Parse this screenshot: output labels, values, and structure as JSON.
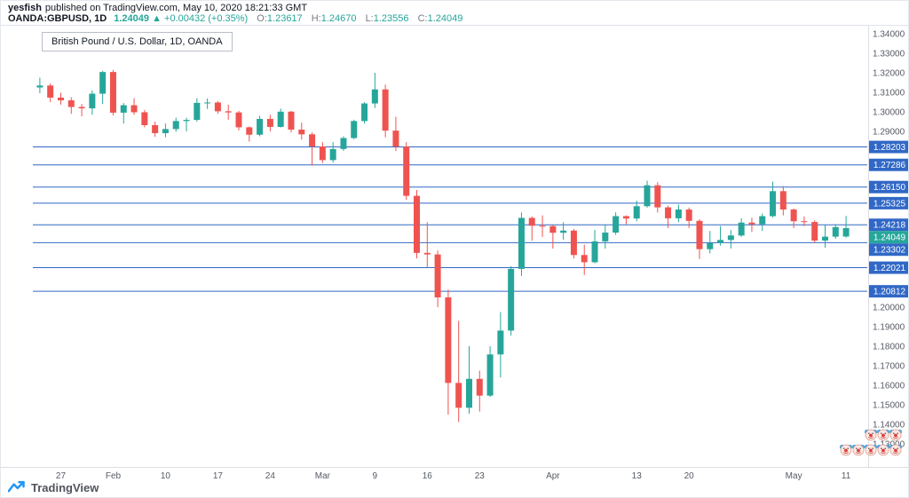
{
  "header": {
    "author": "yesfish",
    "published_text": "published on TradingView.com, May 10, 2020 18:21:33 GMT",
    "symbol": "OANDA:GBPUSD, 1D",
    "price": {
      "last": "1.24049",
      "arrow": "▲",
      "change_abs": "+0.00432",
      "change_pct": "(+0.35%)"
    },
    "ohlc": {
      "o": {
        "label": "O:",
        "value": "1.23617"
      },
      "h": {
        "label": "H:",
        "value": "1.24670"
      },
      "l": {
        "label": "L:",
        "value": "1.23556"
      },
      "c": {
        "label": "C:",
        "value": "1.24049"
      }
    }
  },
  "legend": {
    "text": "British Pound / U.S. Dollar, 1D, OANDA"
  },
  "footer": {
    "brand": "TradingView"
  },
  "colors": {
    "up": "#26a69a",
    "down": "#ef5350",
    "level": "#3168c6",
    "last_label_bg": "#26a69a",
    "axis_text": "#555a63",
    "axis_line": "#dcdee3",
    "label_text": "#ffffff"
  },
  "price_levels": [
    1.28203,
    1.27286,
    1.2615,
    1.25325,
    1.24218,
    1.23302,
    1.22021,
    1.20812
  ],
  "last_price": 1.24049,
  "stickers": {
    "icon": "clown-face-emoji",
    "row_counts": [
      3,
      5
    ]
  },
  "chart_data": {
    "type": "candlestick",
    "title": "British Pound / U.S. Dollar, 1D, OANDA",
    "symbol": "OANDA:GBPUSD",
    "interval": "1D",
    "ylim": [
      1.118,
      1.3441
    ],
    "y_tick_step": 0.01,
    "legend_position": "top-left",
    "grid": false,
    "x_axis_labels": [
      {
        "i": 2,
        "label": "27"
      },
      {
        "i": 7,
        "label": "Feb"
      },
      {
        "i": 12,
        "label": "10"
      },
      {
        "i": 17,
        "label": "17"
      },
      {
        "i": 22,
        "label": "24"
      },
      {
        "i": 27,
        "label": "Mar"
      },
      {
        "i": 32,
        "label": "9"
      },
      {
        "i": 37,
        "label": "16"
      },
      {
        "i": 42,
        "label": "23"
      },
      {
        "i": 49,
        "label": "Apr"
      },
      {
        "i": 57,
        "label": "13"
      },
      {
        "i": 62,
        "label": "20"
      },
      {
        "i": 72,
        "label": "May"
      },
      {
        "i": 77,
        "label": "11"
      }
    ],
    "columns": [
      "date",
      "open",
      "high",
      "low",
      "close"
    ],
    "candles": [
      [
        "2020-01-23",
        1.3125,
        1.3175,
        1.3095,
        1.3135
      ],
      [
        "2020-01-24",
        1.3135,
        1.3145,
        1.305,
        1.3073
      ],
      [
        "2020-01-27",
        1.3073,
        1.3098,
        1.3037,
        1.3059
      ],
      [
        "2020-01-28",
        1.3059,
        1.3075,
        1.299,
        1.3025
      ],
      [
        "2020-01-29",
        1.3025,
        1.304,
        1.2977,
        1.3018
      ],
      [
        "2020-01-30",
        1.3018,
        1.311,
        1.2985,
        1.3093
      ],
      [
        "2020-01-31",
        1.3093,
        1.321,
        1.304,
        1.3204
      ],
      [
        "2020-02-03",
        1.3204,
        1.3215,
        1.2982,
        1.2996
      ],
      [
        "2020-02-04",
        1.2996,
        1.3045,
        1.294,
        1.3034
      ],
      [
        "2020-02-05",
        1.3034,
        1.307,
        1.2985,
        1.2998
      ],
      [
        "2020-02-06",
        1.2998,
        1.301,
        1.2921,
        1.2932
      ],
      [
        "2020-02-07",
        1.2932,
        1.295,
        1.2872,
        1.2891
      ],
      [
        "2020-02-10",
        1.2891,
        1.294,
        1.287,
        1.2912
      ],
      [
        "2020-02-11",
        1.2912,
        1.297,
        1.2898,
        1.2953
      ],
      [
        "2020-02-12",
        1.2953,
        1.297,
        1.29,
        1.2959
      ],
      [
        "2020-02-13",
        1.2959,
        1.307,
        1.295,
        1.3046
      ],
      [
        "2020-02-14",
        1.3046,
        1.3069,
        1.3015,
        1.3048
      ],
      [
        "2020-02-17",
        1.3048,
        1.3055,
        1.299,
        1.3003
      ],
      [
        "2020-02-18",
        1.3003,
        1.3037,
        1.296,
        1.2997
      ],
      [
        "2020-02-19",
        1.2997,
        1.3005,
        1.2905,
        1.2921
      ],
      [
        "2020-02-20",
        1.2921,
        1.2925,
        1.2848,
        1.2883
      ],
      [
        "2020-02-21",
        1.2883,
        1.298,
        1.2875,
        1.2964
      ],
      [
        "2020-02-24",
        1.2964,
        1.2985,
        1.29,
        1.2923
      ],
      [
        "2020-02-25",
        1.2923,
        1.3017,
        1.292,
        1.3001
      ],
      [
        "2020-02-26",
        1.3001,
        1.3005,
        1.2895,
        1.2909
      ],
      [
        "2020-02-27",
        1.2909,
        1.2945,
        1.2858,
        1.2885
      ],
      [
        "2020-02-28",
        1.2885,
        1.2895,
        1.2725,
        1.2823
      ],
      [
        "2020-03-02",
        1.2823,
        1.2845,
        1.2738,
        1.2753
      ],
      [
        "2020-03-03",
        1.2753,
        1.2845,
        1.274,
        1.281
      ],
      [
        "2020-03-04",
        1.281,
        1.2875,
        1.28,
        1.2866
      ],
      [
        "2020-03-05",
        1.2866,
        1.296,
        1.286,
        1.2953
      ],
      [
        "2020-03-06",
        1.2953,
        1.305,
        1.294,
        1.3043
      ],
      [
        "2020-03-09",
        1.3043,
        1.32,
        1.302,
        1.3115
      ],
      [
        "2020-03-10",
        1.3115,
        1.314,
        1.287,
        1.2904
      ],
      [
        "2020-03-11",
        1.2904,
        1.2975,
        1.28,
        1.2822
      ],
      [
        "2020-03-12",
        1.2822,
        1.2845,
        1.255,
        1.257
      ],
      [
        "2020-03-13",
        1.257,
        1.26,
        1.225,
        1.2278
      ],
      [
        "2020-03-16",
        1.2278,
        1.2435,
        1.2205,
        1.227
      ],
      [
        "2020-03-17",
        1.227,
        1.229,
        1.2,
        1.205
      ],
      [
        "2020-03-18",
        1.205,
        1.209,
        1.145,
        1.1612
      ],
      [
        "2020-03-19",
        1.1612,
        1.193,
        1.1412,
        1.1485
      ],
      [
        "2020-03-20",
        1.1485,
        1.18,
        1.1455,
        1.1633
      ],
      [
        "2020-03-23",
        1.1633,
        1.1675,
        1.1465,
        1.1547
      ],
      [
        "2020-03-24",
        1.1547,
        1.18,
        1.154,
        1.1758
      ],
      [
        "2020-03-25",
        1.1758,
        1.1975,
        1.164,
        1.188
      ],
      [
        "2020-03-26",
        1.188,
        1.221,
        1.1855,
        1.2196
      ],
      [
        "2020-03-27",
        1.2196,
        1.2485,
        1.216,
        1.2457
      ],
      [
        "2020-03-30",
        1.2457,
        1.2465,
        1.234,
        1.2417
      ],
      [
        "2020-03-31",
        1.2417,
        1.247,
        1.236,
        1.2415
      ],
      [
        "2020-04-01",
        1.2415,
        1.242,
        1.23,
        1.2381
      ],
      [
        "2020-04-02",
        1.2381,
        1.2435,
        1.2345,
        1.2392
      ],
      [
        "2020-04-03",
        1.2392,
        1.24,
        1.225,
        1.2267
      ],
      [
        "2020-04-06",
        1.2267,
        1.232,
        1.2165,
        1.223
      ],
      [
        "2020-04-07",
        1.223,
        1.2395,
        1.2225,
        1.2337
      ],
      [
        "2020-04-08",
        1.2337,
        1.242,
        1.23,
        1.2382
      ],
      [
        "2020-04-09",
        1.2382,
        1.2485,
        1.237,
        1.2466
      ],
      [
        "2020-04-10",
        1.2466,
        1.247,
        1.2425,
        1.2454
      ],
      [
        "2020-04-13",
        1.2454,
        1.2545,
        1.244,
        1.2517
      ],
      [
        "2020-04-14",
        1.2517,
        1.2648,
        1.251,
        1.2624
      ],
      [
        "2020-04-15",
        1.2624,
        1.264,
        1.2485,
        1.2511
      ],
      [
        "2020-04-16",
        1.2511,
        1.252,
        1.2405,
        1.2455
      ],
      [
        "2020-04-17",
        1.2455,
        1.2525,
        1.2435,
        1.25
      ],
      [
        "2020-04-20",
        1.25,
        1.251,
        1.2405,
        1.2442
      ],
      [
        "2020-04-21",
        1.2442,
        1.245,
        1.2247,
        1.2297
      ],
      [
        "2020-04-22",
        1.2297,
        1.239,
        1.2275,
        1.2329
      ],
      [
        "2020-04-23",
        1.2329,
        1.2415,
        1.2315,
        1.2344
      ],
      [
        "2020-04-24",
        1.2344,
        1.2395,
        1.23,
        1.2367
      ],
      [
        "2020-04-27",
        1.2367,
        1.2455,
        1.236,
        1.2433
      ],
      [
        "2020-04-28",
        1.2433,
        1.2458,
        1.2385,
        1.2424
      ],
      [
        "2020-04-29",
        1.2424,
        1.248,
        1.239,
        1.2466
      ],
      [
        "2020-04-30",
        1.2466,
        1.2643,
        1.246,
        1.2594
      ],
      [
        "2020-05-01",
        1.2594,
        1.262,
        1.247,
        1.25
      ],
      [
        "2020-05-04",
        1.25,
        1.2505,
        1.2405,
        1.244
      ],
      [
        "2020-05-05",
        1.244,
        1.2465,
        1.2415,
        1.2436
      ],
      [
        "2020-05-06",
        1.2436,
        1.2445,
        1.233,
        1.2341
      ],
      [
        "2020-05-07",
        1.2341,
        1.242,
        1.2305,
        1.2361
      ],
      [
        "2020-05-08",
        1.2361,
        1.2425,
        1.235,
        1.241
      ],
      [
        "2020-05-11",
        1.23617,
        1.2467,
        1.23556,
        1.24049
      ]
    ]
  }
}
